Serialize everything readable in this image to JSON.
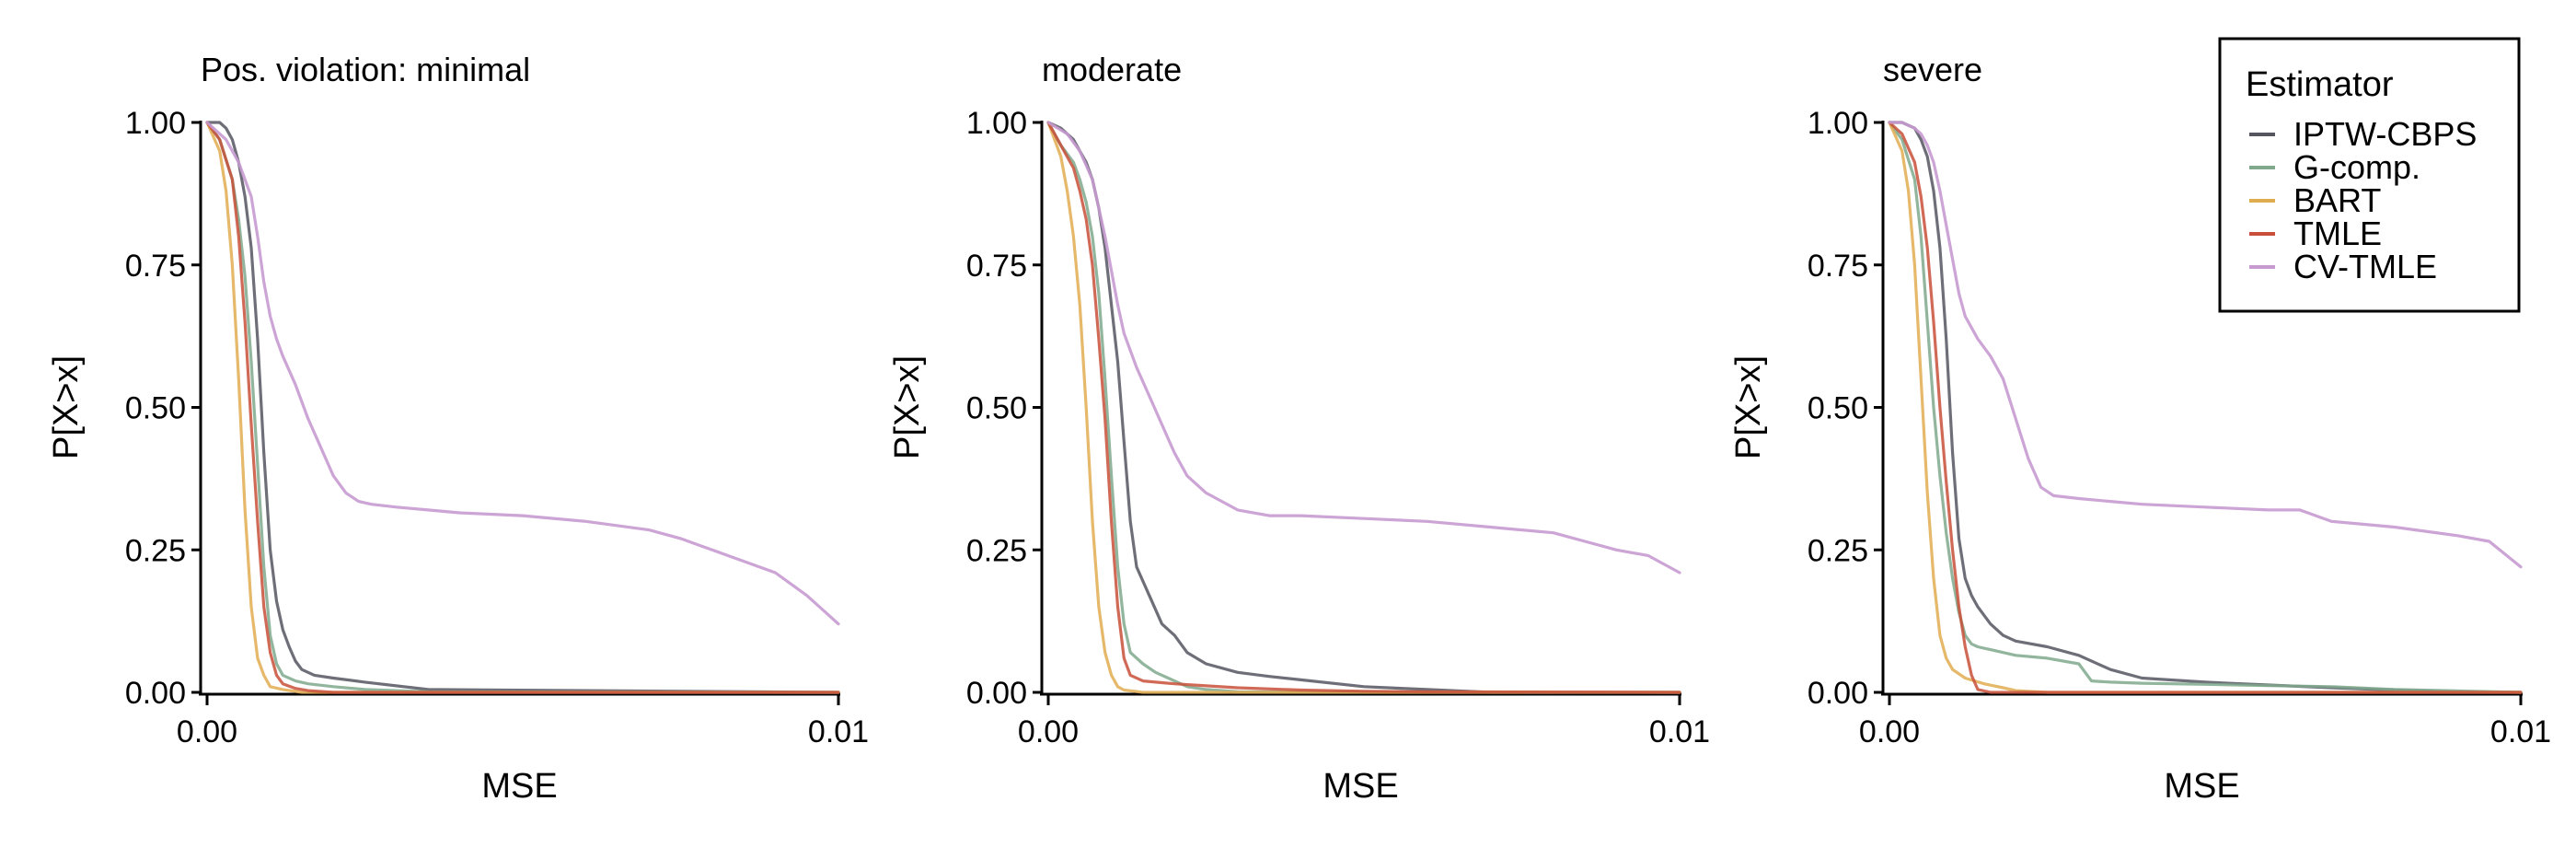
{
  "chart_data": {
    "type": "line",
    "shared": {
      "xlabel": "MSE",
      "ylabel": "P[X>x]",
      "xlim": [
        0,
        0.01
      ],
      "ylim": [
        0,
        1
      ],
      "x_ticks": [
        0,
        0.01
      ],
      "x_tick_labels": [
        "0.00",
        "0.01"
      ],
      "y_ticks": [
        0,
        0.25,
        0.5,
        0.75,
        1.0
      ],
      "y_tick_labels": [
        "0.00",
        "0.25",
        "0.50",
        "0.75",
        "1.00"
      ],
      "grid": false
    },
    "legend": {
      "title": "Estimator",
      "placement": "top-right",
      "entries": [
        {
          "name": "IPTW-CBPS",
          "color": "#555560"
        },
        {
          "name": "G-comp.",
          "color": "#7fa88c"
        },
        {
          "name": "BART",
          "color": "#e0ac50"
        },
        {
          "name": "TMLE",
          "color": "#c8503a"
        },
        {
          "name": "CV-TMLE",
          "color": "#c79ad0"
        }
      ]
    },
    "panels": [
      {
        "title": "Pos. violation: minimal",
        "series": [
          {
            "name": "IPTW-CBPS",
            "x": [
              0,
              0.0002,
              0.0003,
              0.0004,
              0.0005,
              0.0006,
              0.0007,
              0.0008,
              0.0009,
              0.001,
              0.0011,
              0.0012,
              0.0013,
              0.0014,
              0.0015,
              0.0017,
              0.002,
              0.0025,
              0.0035,
              0.01
            ],
            "y": [
              1,
              1,
              0.99,
              0.97,
              0.93,
              0.87,
              0.78,
              0.62,
              0.42,
              0.25,
              0.16,
              0.11,
              0.08,
              0.055,
              0.04,
              0.03,
              0.025,
              0.018,
              0.005,
              0
            ]
          },
          {
            "name": "G-comp.",
            "x": [
              0,
              0.0002,
              0.0004,
              0.0005,
              0.0006,
              0.0007,
              0.0008,
              0.0009,
              0.001,
              0.0011,
              0.0012,
              0.0014,
              0.0016,
              0.002,
              0.0025,
              0.0035,
              0.01
            ],
            "y": [
              1,
              0.97,
              0.9,
              0.83,
              0.73,
              0.58,
              0.4,
              0.22,
              0.1,
              0.05,
              0.03,
              0.02,
              0.015,
              0.01,
              0.005,
              0.001,
              0
            ]
          },
          {
            "name": "BART",
            "x": [
              0,
              0.0002,
              0.0003,
              0.0004,
              0.0005,
              0.0006,
              0.0007,
              0.0008,
              0.0009,
              0.001,
              0.0012,
              0.0015,
              0.01
            ],
            "y": [
              1,
              0.95,
              0.88,
              0.75,
              0.55,
              0.32,
              0.15,
              0.06,
              0.03,
              0.01,
              0.005,
              0,
              0
            ]
          },
          {
            "name": "TMLE",
            "x": [
              0,
              0.0002,
              0.0004,
              0.0005,
              0.0006,
              0.0007,
              0.0008,
              0.0009,
              0.001,
              0.0011,
              0.0012,
              0.0014,
              0.0016,
              0.002,
              0.01
            ],
            "y": [
              1,
              0.97,
              0.9,
              0.8,
              0.65,
              0.47,
              0.3,
              0.15,
              0.07,
              0.03,
              0.015,
              0.007,
              0.003,
              0,
              0
            ]
          },
          {
            "name": "CV-TMLE",
            "x": [
              0,
              0.0003,
              0.0005,
              0.0007,
              0.0008,
              0.0009,
              0.001,
              0.0011,
              0.0012,
              0.0014,
              0.0016,
              0.0018,
              0.002,
              0.0022,
              0.0024,
              0.0026,
              0.003,
              0.0035,
              0.004,
              0.005,
              0.006,
              0.007,
              0.0075,
              0.008,
              0.0085,
              0.009,
              0.0095,
              0.01
            ],
            "y": [
              1,
              0.97,
              0.93,
              0.87,
              0.8,
              0.72,
              0.66,
              0.62,
              0.59,
              0.54,
              0.48,
              0.43,
              0.38,
              0.35,
              0.335,
              0.33,
              0.325,
              0.32,
              0.315,
              0.31,
              0.3,
              0.285,
              0.27,
              0.25,
              0.23,
              0.21,
              0.17,
              0.12
            ]
          }
        ]
      },
      {
        "title": "moderate",
        "series": [
          {
            "name": "IPTW-CBPS",
            "x": [
              0,
              0.0002,
              0.0004,
              0.0005,
              0.0006,
              0.0007,
              0.0008,
              0.0009,
              0.001,
              0.0011,
              0.0012,
              0.0013,
              0.0014,
              0.0016,
              0.0018,
              0.002,
              0.0022,
              0.0025,
              0.003,
              0.0035,
              0.004,
              0.005,
              0.006,
              0.007,
              0.008,
              0.01
            ],
            "y": [
              1,
              0.99,
              0.97,
              0.95,
              0.93,
              0.9,
              0.85,
              0.78,
              0.68,
              0.58,
              0.44,
              0.3,
              0.22,
              0.17,
              0.12,
              0.1,
              0.07,
              0.05,
              0.035,
              0.028,
              0.022,
              0.01,
              0.005,
              0,
              0,
              0
            ]
          },
          {
            "name": "G-comp.",
            "x": [
              0,
              0.0002,
              0.0004,
              0.0005,
              0.0006,
              0.0007,
              0.0008,
              0.0009,
              0.001,
              0.0011,
              0.0012,
              0.0013,
              0.0015,
              0.0017,
              0.002,
              0.0022,
              0.0025,
              0.003,
              0.01
            ],
            "y": [
              1,
              0.96,
              0.93,
              0.9,
              0.86,
              0.8,
              0.7,
              0.55,
              0.38,
              0.22,
              0.12,
              0.07,
              0.05,
              0.035,
              0.02,
              0.01,
              0.005,
              0.001,
              0
            ]
          },
          {
            "name": "BART",
            "x": [
              0,
              0.0002,
              0.0003,
              0.0004,
              0.0005,
              0.0006,
              0.0007,
              0.0008,
              0.0009,
              0.001,
              0.0011,
              0.0012,
              0.0015,
              0.01
            ],
            "y": [
              1,
              0.94,
              0.88,
              0.8,
              0.68,
              0.5,
              0.3,
              0.15,
              0.07,
              0.03,
              0.01,
              0.004,
              0,
              0
            ]
          },
          {
            "name": "TMLE",
            "x": [
              0,
              0.0002,
              0.0004,
              0.0005,
              0.0006,
              0.0007,
              0.0008,
              0.0009,
              0.001,
              0.0011,
              0.0012,
              0.0013,
              0.0015,
              0.002,
              0.003,
              0.004,
              0.005,
              0.006,
              0.01
            ],
            "y": [
              1,
              0.96,
              0.92,
              0.88,
              0.83,
              0.75,
              0.62,
              0.48,
              0.3,
              0.15,
              0.06,
              0.03,
              0.02,
              0.015,
              0.008,
              0.004,
              0.002,
              0.001,
              0
            ]
          },
          {
            "name": "CV-TMLE",
            "x": [
              0,
              0.0003,
              0.0005,
              0.0007,
              0.0008,
              0.0009,
              0.001,
              0.0011,
              0.0012,
              0.0014,
              0.0016,
              0.0018,
              0.002,
              0.0022,
              0.0025,
              0.003,
              0.0035,
              0.004,
              0.005,
              0.006,
              0.007,
              0.008,
              0.0085,
              0.009,
              0.0095,
              0.01
            ],
            "y": [
              1,
              0.98,
              0.95,
              0.9,
              0.85,
              0.8,
              0.74,
              0.68,
              0.63,
              0.57,
              0.52,
              0.47,
              0.42,
              0.38,
              0.35,
              0.32,
              0.31,
              0.31,
              0.305,
              0.3,
              0.29,
              0.28,
              0.265,
              0.25,
              0.24,
              0.21
            ]
          }
        ]
      },
      {
        "title": "severe",
        "series": [
          {
            "name": "IPTW-CBPS",
            "x": [
              0,
              0.0002,
              0.0004,
              0.0005,
              0.0006,
              0.0007,
              0.0008,
              0.0009,
              0.001,
              0.0011,
              0.0012,
              0.0013,
              0.0014,
              0.0016,
              0.0018,
              0.002,
              0.0025,
              0.003,
              0.0035,
              0.004,
              0.005,
              0.006,
              0.007,
              0.008,
              0.009,
              0.01
            ],
            "y": [
              1,
              1,
              0.99,
              0.97,
              0.94,
              0.88,
              0.78,
              0.62,
              0.42,
              0.27,
              0.2,
              0.17,
              0.15,
              0.12,
              0.1,
              0.09,
              0.08,
              0.065,
              0.04,
              0.025,
              0.018,
              0.013,
              0.008,
              0.004,
              0.001,
              0
            ]
          },
          {
            "name": "G-comp.",
            "x": [
              0,
              0.0002,
              0.0004,
              0.0005,
              0.0006,
              0.0007,
              0.0008,
              0.0009,
              0.001,
              0.0011,
              0.0012,
              0.0013,
              0.0014,
              0.0016,
              0.0018,
              0.002,
              0.0025,
              0.003,
              0.0032,
              0.0035,
              0.004,
              0.005,
              0.006,
              0.007,
              0.008,
              0.01
            ],
            "y": [
              1,
              0.97,
              0.9,
              0.8,
              0.65,
              0.5,
              0.38,
              0.28,
              0.2,
              0.14,
              0.1,
              0.085,
              0.08,
              0.075,
              0.07,
              0.065,
              0.06,
              0.05,
              0.02,
              0.018,
              0.016,
              0.014,
              0.012,
              0.01,
              0.005,
              0
            ]
          },
          {
            "name": "BART",
            "x": [
              0,
              0.0002,
              0.0003,
              0.0004,
              0.0005,
              0.0006,
              0.0007,
              0.0008,
              0.0009,
              0.001,
              0.0012,
              0.0015,
              0.0018,
              0.002,
              0.0025,
              0.01
            ],
            "y": [
              1,
              0.95,
              0.88,
              0.75,
              0.55,
              0.35,
              0.2,
              0.1,
              0.06,
              0.04,
              0.025,
              0.015,
              0.008,
              0.003,
              0,
              0
            ]
          },
          {
            "name": "TMLE",
            "x": [
              0,
              0.0002,
              0.0004,
              0.0005,
              0.0006,
              0.0007,
              0.0008,
              0.0009,
              0.001,
              0.0011,
              0.0012,
              0.0013,
              0.0014,
              0.0016,
              0.01
            ],
            "y": [
              1,
              0.98,
              0.93,
              0.87,
              0.78,
              0.65,
              0.5,
              0.37,
              0.25,
              0.15,
              0.08,
              0.03,
              0.005,
              0,
              0
            ]
          },
          {
            "name": "CV-TMLE",
            "x": [
              0,
              0.0002,
              0.0004,
              0.0005,
              0.0006,
              0.0007,
              0.0008,
              0.0009,
              0.001,
              0.0011,
              0.0012,
              0.0014,
              0.0016,
              0.0018,
              0.002,
              0.0022,
              0.0024,
              0.0026,
              0.003,
              0.0035,
              0.004,
              0.005,
              0.006,
              0.0065,
              0.007,
              0.008,
              0.009,
              0.0095,
              0.01
            ],
            "y": [
              1,
              1,
              0.99,
              0.98,
              0.96,
              0.93,
              0.88,
              0.82,
              0.76,
              0.7,
              0.66,
              0.62,
              0.59,
              0.55,
              0.48,
              0.41,
              0.36,
              0.345,
              0.34,
              0.335,
              0.33,
              0.325,
              0.32,
              0.32,
              0.3,
              0.29,
              0.275,
              0.265,
              0.22
            ]
          }
        ]
      }
    ]
  }
}
